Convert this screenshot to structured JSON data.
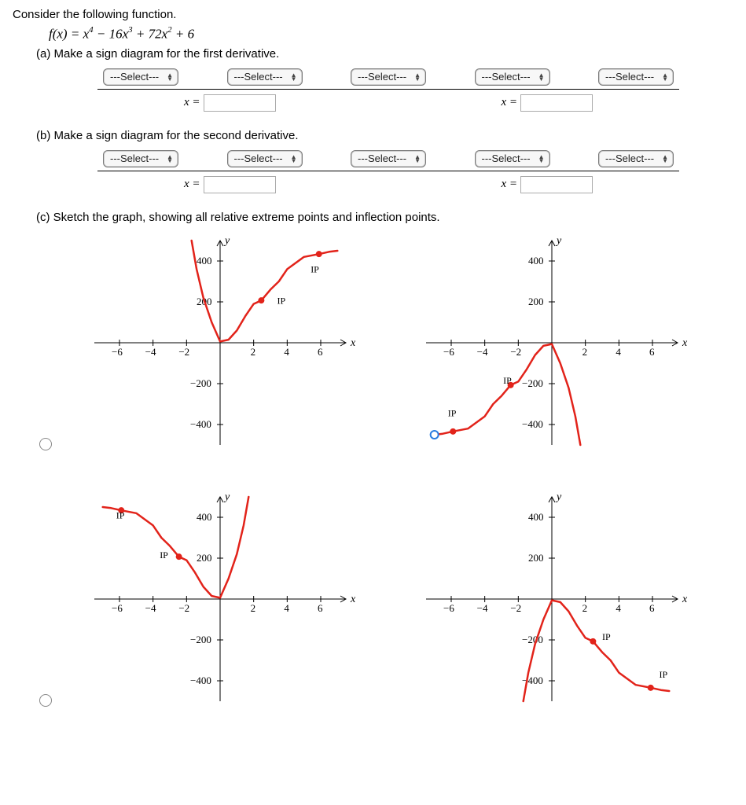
{
  "intro": "Consider the following function.",
  "function_html": "f(x) = x<sup>4</sup> − 16x<sup>3</sup> + 72x<sup>2</sup> + 6",
  "parts": {
    "a": "(a) Make a sign diagram for the first derivative.",
    "b": "(b) Make a sign diagram for the second derivative.",
    "c": "(c) Sketch the graph, showing all relative extreme points and inflection points."
  },
  "sign_diagram": {
    "select_label": "---Select---",
    "x_equals": "x =",
    "num_selects": 5,
    "num_inputs": 2
  },
  "graphs": {
    "x_range": [
      -7.5,
      7.5
    ],
    "y_range": [
      -500,
      500
    ],
    "x_ticks": [
      -6,
      -4,
      -2,
      2,
      4,
      6
    ],
    "y_ticks": [
      -400,
      -200,
      200,
      400
    ],
    "x_axis_label": "x",
    "y_axis_label": "y",
    "ip_text": "IP",
    "curve_color": "#e2231a",
    "option1": {
      "curve": [
        [
          -1.7,
          500
        ],
        [
          -1.4,
          360
        ],
        [
          -1,
          220
        ],
        [
          -0.5,
          100
        ],
        [
          0,
          6
        ],
        [
          0.5,
          15
        ],
        [
          1,
          60
        ],
        [
          1.5,
          130
        ],
        [
          2,
          190
        ],
        [
          2.455,
          207
        ],
        [
          3,
          260
        ],
        [
          3.5,
          300
        ],
        [
          4,
          360
        ],
        [
          5,
          420
        ],
        [
          5.893,
          434
        ],
        [
          6.5,
          445
        ],
        [
          7,
          450
        ]
      ],
      "ip_dots": [
        [
          2.455,
          207
        ],
        [
          5.893,
          434
        ]
      ],
      "ip_labels": [
        [
          3.4,
          190,
          "IP"
        ],
        [
          5.4,
          344,
          "IP"
        ]
      ]
    },
    "option2": {
      "curve": [
        [
          -7,
          -450
        ],
        [
          -6.5,
          -445
        ],
        [
          -5.893,
          -434
        ],
        [
          -5,
          -420
        ],
        [
          -4,
          -360
        ],
        [
          -3.5,
          -300
        ],
        [
          -3,
          -260
        ],
        [
          -2.455,
          -207
        ],
        [
          -2,
          -190
        ],
        [
          -1.5,
          -130
        ],
        [
          -1,
          -60
        ],
        [
          -0.5,
          -15
        ],
        [
          0,
          -6
        ],
        [
          0.5,
          -100
        ],
        [
          1,
          -220
        ],
        [
          1.4,
          -360
        ],
        [
          1.7,
          -500
        ]
      ],
      "ip_dots": [
        [
          -5.893,
          -434
        ],
        [
          -2.455,
          -207
        ]
      ],
      "ip_labels": [
        [
          -6.2,
          -360,
          "IP"
        ],
        [
          -2.9,
          -200,
          "IP"
        ]
      ],
      "blue_open_dot": [
        -7,
        -450
      ]
    },
    "option3": {
      "curve": [
        [
          -7,
          450
        ],
        [
          -6.5,
          445
        ],
        [
          -5.893,
          434
        ],
        [
          -5,
          420
        ],
        [
          -4,
          360
        ],
        [
          -3.5,
          300
        ],
        [
          -3,
          260
        ],
        [
          -2.455,
          207
        ],
        [
          -2,
          190
        ],
        [
          -1.5,
          130
        ],
        [
          -1,
          60
        ],
        [
          -0.5,
          15
        ],
        [
          0,
          6
        ],
        [
          0.5,
          100
        ],
        [
          1,
          220
        ],
        [
          1.4,
          360
        ],
        [
          1.7,
          500
        ]
      ],
      "ip_dots": [
        [
          -5.893,
          434
        ],
        [
          -2.455,
          207
        ]
      ],
      "ip_labels": [
        [
          -6.2,
          395,
          "IP"
        ],
        [
          -3.6,
          200,
          "IP"
        ]
      ]
    },
    "option4": {
      "curve": [
        [
          -1.7,
          -500
        ],
        [
          -1.4,
          -360
        ],
        [
          -1,
          -220
        ],
        [
          -0.5,
          -100
        ],
        [
          0,
          -6
        ],
        [
          0.5,
          -15
        ],
        [
          1,
          -60
        ],
        [
          1.5,
          -130
        ],
        [
          2,
          -190
        ],
        [
          2.455,
          -207
        ],
        [
          3,
          -260
        ],
        [
          3.5,
          -300
        ],
        [
          4,
          -360
        ],
        [
          5,
          -420
        ],
        [
          5.893,
          -434
        ],
        [
          6.5,
          -445
        ],
        [
          7,
          -450
        ]
      ],
      "ip_dots": [
        [
          2.455,
          -207
        ],
        [
          5.893,
          -434
        ]
      ],
      "ip_labels": [
        [
          3.0,
          -200,
          "IP"
        ],
        [
          6.4,
          -385,
          "IP"
        ]
      ]
    }
  }
}
